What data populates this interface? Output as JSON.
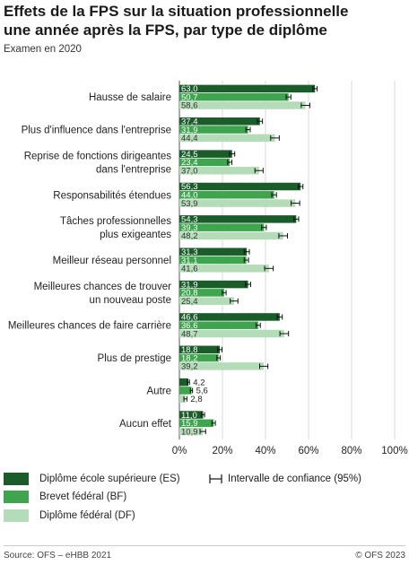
{
  "title_line1": "Effets de la FPS sur la situation professionnelle",
  "title_line2": "une année après la FPS, par type de diplôme",
  "subtitle": "Examen en 2020",
  "footer": {
    "source": "Source: OFS – eHBB 2021",
    "copyright": "© OFS 2023"
  },
  "colors": {
    "es": "#1a5c2a",
    "bf": "#3ea44e",
    "df": "#b5dcb8"
  },
  "legend": {
    "es": "Diplôme école supérieure (ES)",
    "bf": "Brevet fédéral (BF)",
    "df": "Diplôme  fédéral (DF)",
    "ci": "Intervalle de confiance (95%)"
  },
  "chart_data": {
    "type": "bar",
    "orientation": "horizontal",
    "categories": [
      [
        "Hausse de salaire"
      ],
      [
        "Plus d'influence dans l'entreprise"
      ],
      [
        "Reprise de fonctions dirigeantes",
        "dans l'entreprise"
      ],
      [
        "Responsabilités étendues"
      ],
      [
        "Tâches professionnelles",
        "plus exigeantes"
      ],
      [
        "Meilleur réseau personnel"
      ],
      [
        "Meilleures chances de trouver",
        "un nouveau poste"
      ],
      [
        "Meilleures chances de faire carrière"
      ],
      [
        "Plus de prestige"
      ],
      [
        "Autre"
      ],
      [
        "Aucun effet"
      ]
    ],
    "series": [
      {
        "name": "Diplôme école supérieure (ES)",
        "values": [
          63.0,
          37.4,
          24.5,
          56.3,
          54.3,
          31.3,
          31.9,
          46.6,
          18.8,
          4.2,
          11.0
        ],
        "labels": [
          "63,0",
          "37,4",
          "24,5",
          "56,3",
          "54,3",
          "31,3",
          "31,9",
          "46,6",
          "18,8",
          "4,2",
          "11,0"
        ],
        "ci": [
          1.0,
          1.2,
          1.2,
          1.1,
          1.1,
          1.2,
          1.2,
          1.2,
          1.0,
          0.5,
          0.7
        ]
      },
      {
        "name": "Brevet fédéral (BF)",
        "values": [
          50.7,
          31.9,
          23.4,
          44.0,
          39.3,
          31.1,
          20.8,
          36.6,
          18.2,
          5.6,
          15.9
        ],
        "labels": [
          "50,7",
          "31,9",
          "23,4",
          "44,0",
          "39,3",
          "31,1",
          "20,8",
          "36,6",
          "18,2",
          "5,6",
          "15,9"
        ],
        "ci": [
          1.1,
          1.0,
          1.0,
          1.1,
          1.1,
          1.0,
          0.9,
          1.0,
          0.8,
          0.5,
          0.8
        ]
      },
      {
        "name": "Diplôme  fédéral (DF)",
        "values": [
          58.6,
          44.4,
          37.0,
          53.9,
          48.2,
          41.6,
          25.4,
          48.7,
          39.2,
          2.8,
          10.9
        ],
        "labels": [
          "58,6",
          "44,4",
          "37,0",
          "53,9",
          "48,2",
          "41,6",
          "25,4",
          "48,7",
          "39,2",
          "2,8",
          "10,9"
        ],
        "ci": [
          2.0,
          2.0,
          1.9,
          2.0,
          2.0,
          2.0,
          1.8,
          2.0,
          1.9,
          0.7,
          1.3
        ]
      }
    ],
    "xticks": [
      "0%",
      "20%",
      "40%",
      "60%",
      "80%",
      "100%"
    ],
    "xlim": [
      0,
      100
    ],
    "grid": "vertical"
  }
}
